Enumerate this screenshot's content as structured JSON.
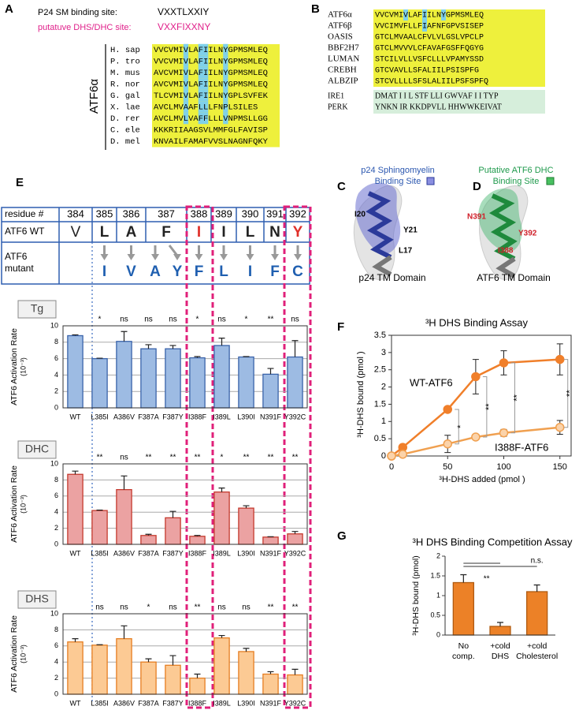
{
  "panels": {
    "a": {
      "label": "A",
      "sites": [
        {
          "label": "P24 SM binding site:",
          "motif": "VXXTLXXIY"
        },
        {
          "label": "putatuve DHS/DHC site:",
          "motif": "VXXFIXXNY"
        }
      ],
      "protein": "ATF6α",
      "species": [
        "H. sap",
        "P. tro",
        "M. mus",
        "R. nor",
        "G. gal",
        "X. lae",
        "D. rer",
        "C. ele",
        "D. mel"
      ],
      "sequences": [
        "VVCVMIVLAFIILNYGPMSMLEQ",
        "VVCVMIVLAFIILNYGPMSMLEQ",
        "AVCVMIVLAFIILNYGPMSMLEQ",
        "AVCVMIVLAFIILNYGPMSMLEQ",
        "TLCVMIVLAFIILNYGPLSVFEK",
        "AVCLMVAAFLLLFNPLSILES",
        "AVCLMVLVAFFLLLVNPMSLLGG",
        "KKKRIIAAGSVLMMFGLFAVISP",
        "KNVAILFAMAFVVSLNAGNFQKY"
      ]
    },
    "b": {
      "label": "B",
      "names": [
        "ATF6α",
        "ATF6β",
        "OASIS",
        "BBF2H7",
        "LUMAN",
        "CREBH",
        "ALBZIP"
      ],
      "sequences": [
        "VVCVMIVLAFIILNYGPMSMLEQ",
        "VVCIMVFLLFIAFNFGPVSISEP",
        "GTCLMVAALCFVLVLGSLVPCLP",
        "GTCLMVVVLCFAVAFGSFFQGYG",
        "STCILVLLVSFCLLLVPAMYSSD",
        "GTCVAVLLSFALIILPSISPFG",
        "STCVLLLLSFSLALIILPSFSPFQ"
      ],
      "other_names": [
        "IRE1",
        "PERK"
      ],
      "other_sequences": [
        "DMAT I I L STF LLI GWVAF I I TYP",
        "YNKN IR KKDPVLL HHWWKEIVAT"
      ]
    },
    "c": {
      "label": "C",
      "title": [
        "p24 Sphingomyelin",
        "Binding Site"
      ],
      "residues": [
        "I20",
        "Y21",
        "L17"
      ],
      "caption": "p24 TM Domain"
    },
    "d": {
      "label": "D",
      "title": [
        "Putative ATF6 DHC",
        "Binding Site"
      ],
      "residues": [
        "N391",
        "Y392",
        "I388"
      ],
      "caption": "ATF6 TM Domain"
    },
    "e": {
      "label": "E",
      "row_labels": [
        "residue #",
        "ATF6 WT",
        [
          "ATF6",
          "mutant"
        ]
      ],
      "residues": [
        384,
        385,
        386,
        387,
        388,
        389,
        390,
        391,
        392
      ],
      "wild_type": [
        "V",
        "L",
        "A",
        "F",
        "I",
        "I",
        "L",
        "N",
        "Y"
      ],
      "mutants": [
        [],
        [
          "I"
        ],
        [
          "V"
        ],
        [
          "A",
          "Y"
        ],
        [
          "F"
        ],
        [
          "L"
        ],
        [
          "I"
        ],
        [
          "F"
        ],
        [
          "C"
        ]
      ]
    }
  },
  "chart_data": [
    {
      "type": "bar",
      "title": "Tg",
      "ylabel": [
        "ATF6 Activation Rate",
        "(10⁻³)"
      ],
      "color": "#9dbbe3",
      "edge_color": "#3a63aa",
      "categories": [
        "WT",
        "L385I",
        "A386V",
        "F387A",
        "F387Y",
        "I388F",
        "I389L",
        "L390I",
        "N391F",
        "Y392C"
      ],
      "values": [
        8.8,
        6.0,
        8.1,
        7.2,
        7.2,
        6.1,
        7.6,
        6.2,
        4.1,
        6.2
      ],
      "errors": [
        0.1,
        0.05,
        1.2,
        0.5,
        0.4,
        0.15,
        0.9,
        0.05,
        0.7,
        2.0
      ],
      "significance": [
        null,
        "*",
        "ns",
        "ns",
        "ns",
        "*",
        "ns",
        "*",
        "**",
        "ns"
      ],
      "ylim": [
        0,
        10
      ],
      "yticks": [
        0,
        2,
        4,
        6,
        8,
        10
      ],
      "grid": true
    },
    {
      "type": "bar",
      "title": "DHC",
      "ylabel": [
        "ATF6 Activation Rate",
        "(10⁻³)"
      ],
      "color": "#eba2a2",
      "edge_color": "#c53a2e",
      "categories": [
        "WT",
        "L385I",
        "A386V",
        "F387A",
        "F387Y",
        "I388F",
        "I389L",
        "L390I",
        "N391F",
        "Y392C"
      ],
      "values": [
        8.7,
        4.2,
        6.8,
        1.1,
        3.3,
        1.0,
        6.5,
        4.5,
        0.9,
        1.3
      ],
      "errors": [
        0.4,
        0.05,
        1.7,
        0.15,
        0.8,
        0.1,
        0.5,
        0.3,
        0.05,
        0.3
      ],
      "significance": [
        null,
        "**",
        "ns",
        "**",
        "**",
        "**",
        "*",
        "**",
        "**",
        "**"
      ],
      "ylim": [
        0,
        10
      ],
      "yticks": [
        0,
        2,
        4,
        6,
        8,
        10
      ],
      "grid": true
    },
    {
      "type": "bar",
      "title": "DHS",
      "ylabel": [
        "ATF6 Activation Rate",
        "(10⁻³)"
      ],
      "color": "#fcca94",
      "edge_color": "#e67e22",
      "categories": [
        "WT",
        "L385I",
        "A386V",
        "F387A",
        "F387Y",
        "I388F",
        "I389L",
        "L390I",
        "N391F",
        "Y392C"
      ],
      "values": [
        6.5,
        6.1,
        6.9,
        4.0,
        3.6,
        2.0,
        7.0,
        5.3,
        2.5,
        2.4
      ],
      "errors": [
        0.4,
        0.05,
        1.6,
        0.4,
        1.2,
        0.5,
        0.3,
        0.4,
        0.3,
        0.7
      ],
      "significance": [
        null,
        "ns",
        "ns",
        "*",
        "ns",
        "**",
        "ns",
        "ns",
        "**",
        "**"
      ],
      "ylim": [
        0,
        10
      ],
      "yticks": [
        0,
        2,
        4,
        6,
        8,
        10
      ],
      "grid": true
    },
    {
      "type": "line",
      "panel": "F",
      "title": "³H DHS Binding Assay",
      "xlabel": "³H-DHS added (pmol )",
      "ylabel": "³H-DHS bound (pmol )",
      "x": [
        0,
        10,
        50,
        75,
        100,
        150
      ],
      "series": [
        {
          "name": "WT-ATF6",
          "color": "#f07f2a",
          "values": [
            0,
            0.25,
            1.35,
            2.3,
            2.7,
            2.8
          ],
          "errors": [
            null,
            null,
            0.05,
            0.5,
            0.35,
            0.45
          ]
        },
        {
          "name": "I388F-ATF6",
          "color": "#f0a050",
          "values": [
            0,
            0.05,
            0.35,
            0.55,
            0.67,
            0.83
          ],
          "errors": [
            null,
            null,
            0.25,
            0.05,
            0.1,
            0.2
          ]
        }
      ],
      "brackets": [
        {
          "x": 50,
          "label": "*"
        },
        {
          "x": 75,
          "label": "**"
        },
        {
          "x": 100,
          "label": "**"
        },
        {
          "x": 150,
          "label": "**"
        }
      ],
      "xlim": [
        0,
        160
      ],
      "xticks": [
        0,
        50,
        100,
        150
      ],
      "ylim": [
        0,
        3.5
      ],
      "yticks": [
        0,
        0.5,
        1,
        1.5,
        2,
        2.5,
        3,
        3.5
      ]
    },
    {
      "type": "bar",
      "panel": "G",
      "title": "³H DHS Binding Competition Assay",
      "ylabel": [
        "³H-DHS bound (pmol)"
      ],
      "color": "#ec8127",
      "edge_color": "#b05a10",
      "categories": [
        [
          "No",
          "comp."
        ],
        [
          "+cold",
          "DHS"
        ],
        [
          "+cold",
          "Cholesterol"
        ]
      ],
      "values": [
        1.33,
        0.22,
        1.1
      ],
      "errors": [
        0.2,
        0.1,
        0.17
      ],
      "significance": [
        null,
        "**",
        "n.s."
      ],
      "ylim": [
        0,
        2
      ],
      "yticks": [
        0,
        0.5,
        1,
        1.5,
        2
      ],
      "grid": false
    }
  ]
}
